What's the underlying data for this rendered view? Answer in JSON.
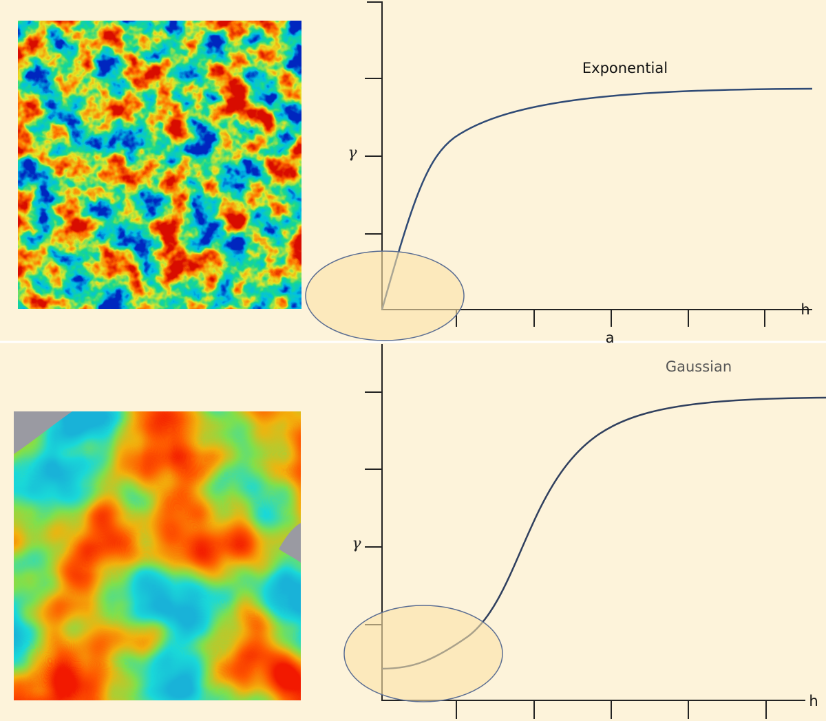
{
  "top": {
    "title": "Exponential",
    "y_label": "γ",
    "x_label": "h",
    "x_marker": "a"
  },
  "bottom": {
    "title": "Gaussian",
    "y_label": "γ",
    "x_label": "h"
  }
}
